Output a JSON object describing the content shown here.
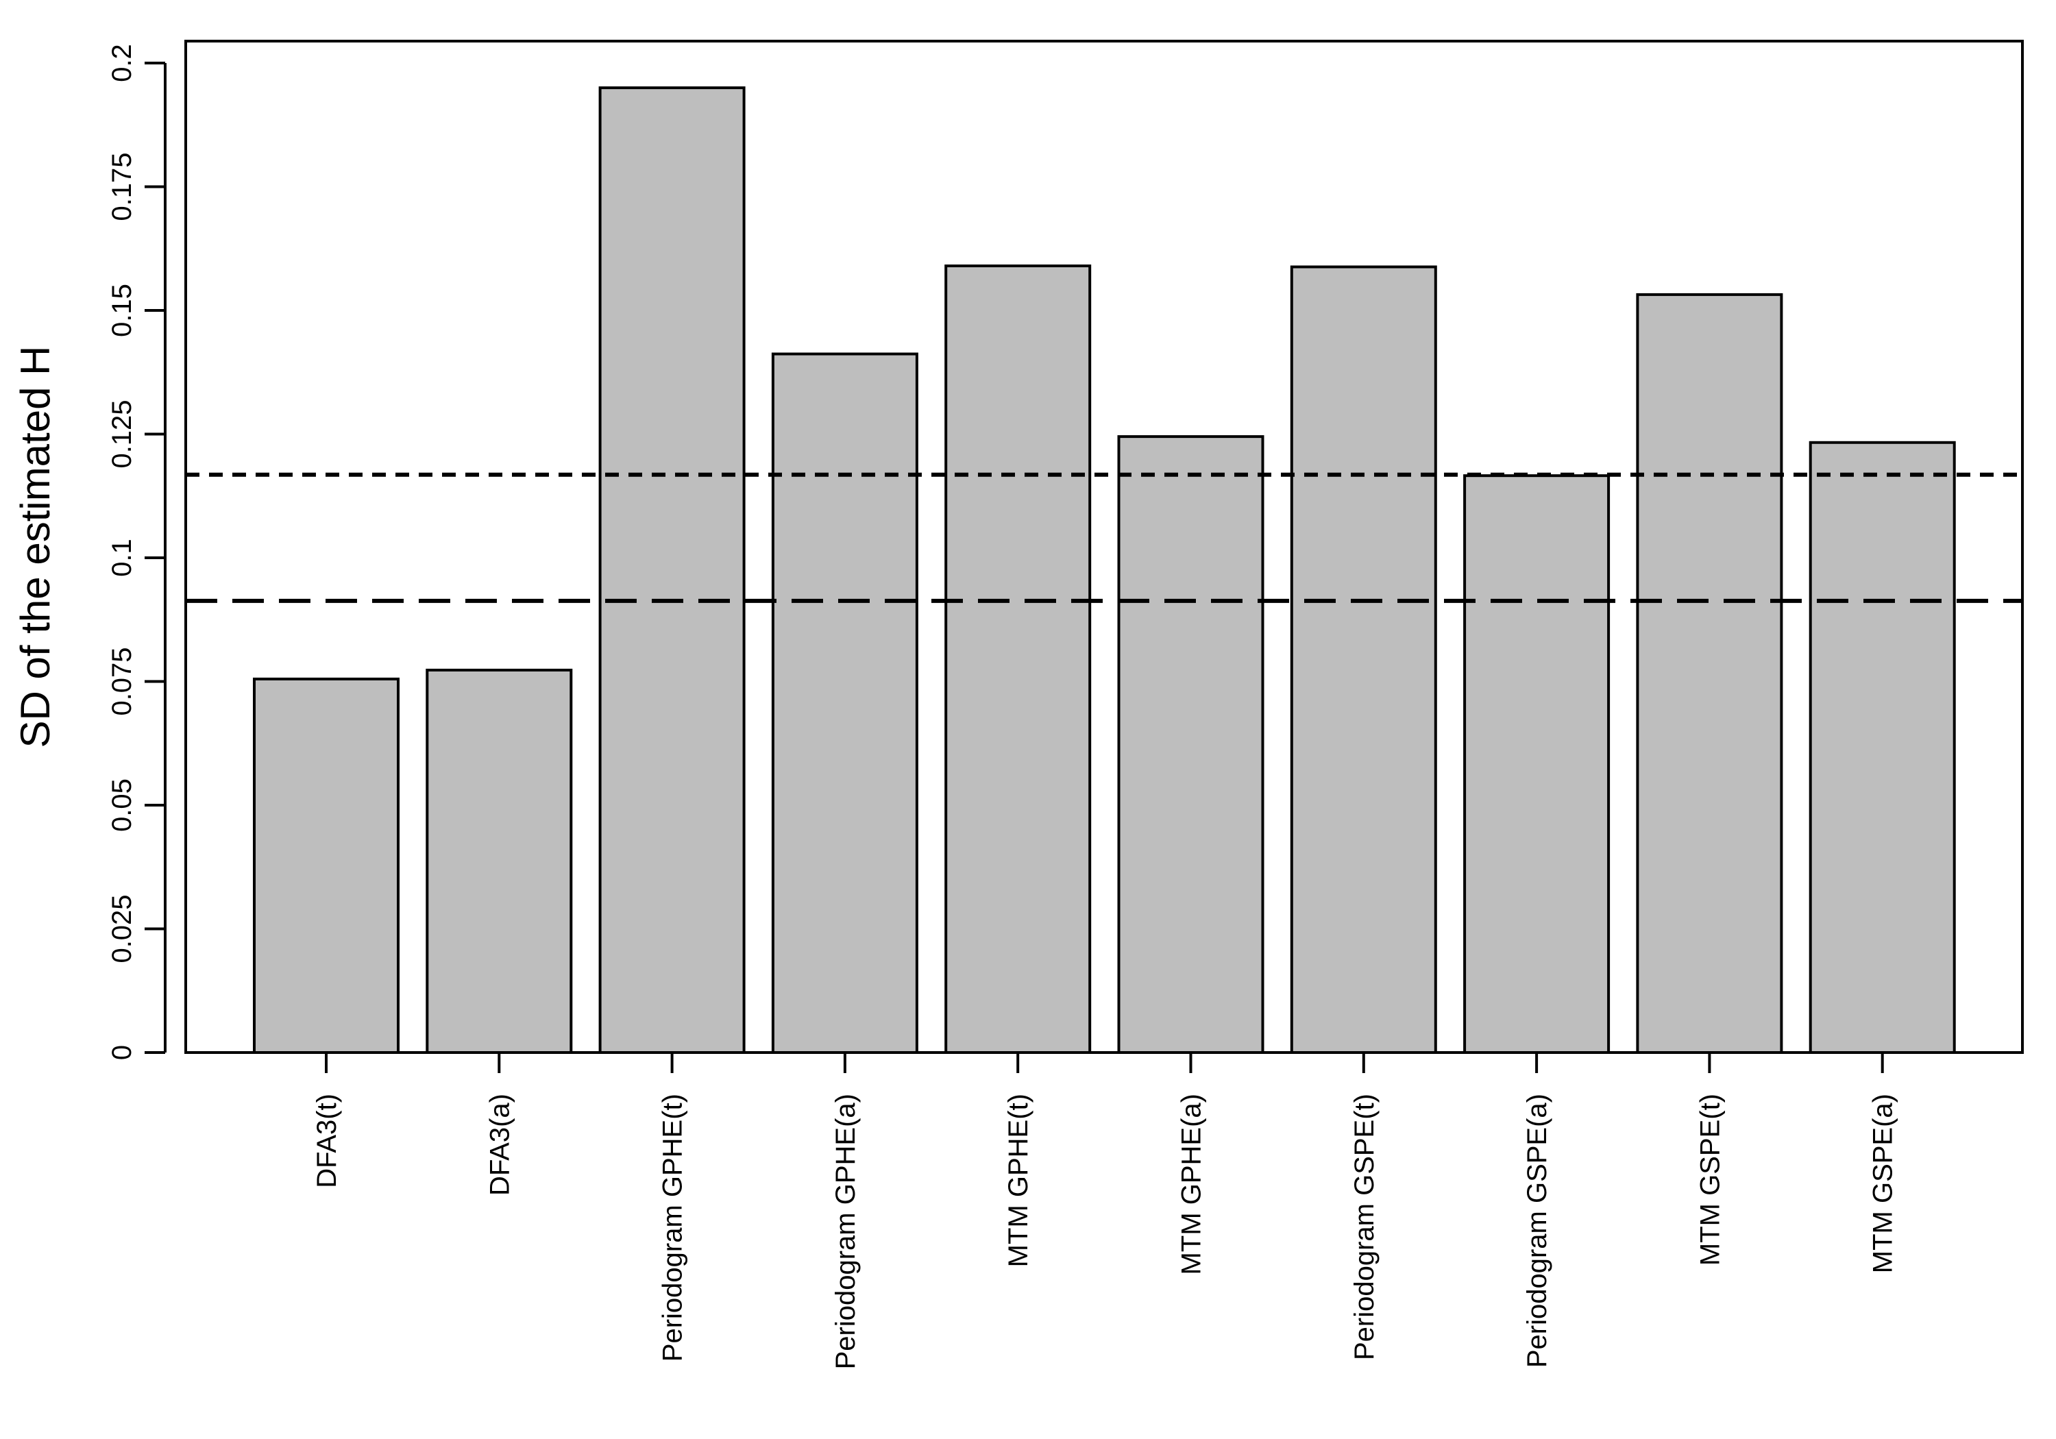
{
  "chart_data": {
    "type": "bar",
    "title": "",
    "xlabel": "",
    "ylabel": "SD of the estimated H",
    "ylim": [
      0,
      0.2
    ],
    "yticks": [
      0,
      0.025,
      0.05,
      0.075,
      0.1,
      0.125,
      0.15,
      0.175,
      0.2
    ],
    "ytick_labels": [
      "0",
      "0.025",
      "0.05",
      "0.075",
      "0.1",
      "0.125",
      "0.15",
      "0.175",
      "0.2"
    ],
    "categories": [
      "DFA3(t)",
      "DFA3(a)",
      "Periodogram GPHE(t)",
      "Periodogram GPHE(a)",
      "MTM GPHE(t)",
      "MTM GPHE(a)",
      "Periodogram GSPE(t)",
      "Periodogram GSPE(a)",
      "MTM GSPE(t)",
      "MTM GSPE(a)"
    ],
    "values": [
      0.0755,
      0.0773,
      0.195,
      0.1412,
      0.159,
      0.1245,
      0.1588,
      0.1166,
      0.1532,
      0.1233
    ],
    "reference_lines": [
      {
        "style": "dotted",
        "value": 0.1168
      },
      {
        "style": "dashed",
        "value": 0.0913
      }
    ],
    "bar_color": "#bebebe",
    "grid": false,
    "legend": "none"
  }
}
